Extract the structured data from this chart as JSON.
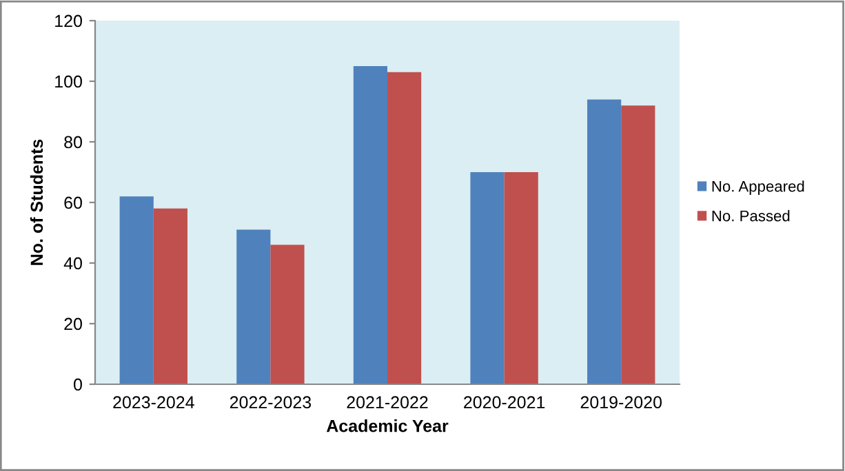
{
  "chart_data": {
    "type": "bar",
    "xlabel": "Academic Year",
    "ylabel": "No. of Students",
    "categories": [
      "2023-2024",
      "2022-2023",
      "2021-2022",
      "2020-2021",
      "2019-2020"
    ],
    "series": [
      {
        "name": "No. Appeared",
        "color": "#4f81bd",
        "values": [
          62,
          51,
          105,
          70,
          94
        ]
      },
      {
        "name": "No. Passed",
        "color": "#c0504d",
        "values": [
          58,
          46,
          103,
          70,
          92
        ]
      }
    ],
    "ylim": [
      0,
      120
    ],
    "yticks": [
      0,
      20,
      40,
      60,
      80,
      100,
      120
    ],
    "grid": false,
    "legend": "right"
  }
}
